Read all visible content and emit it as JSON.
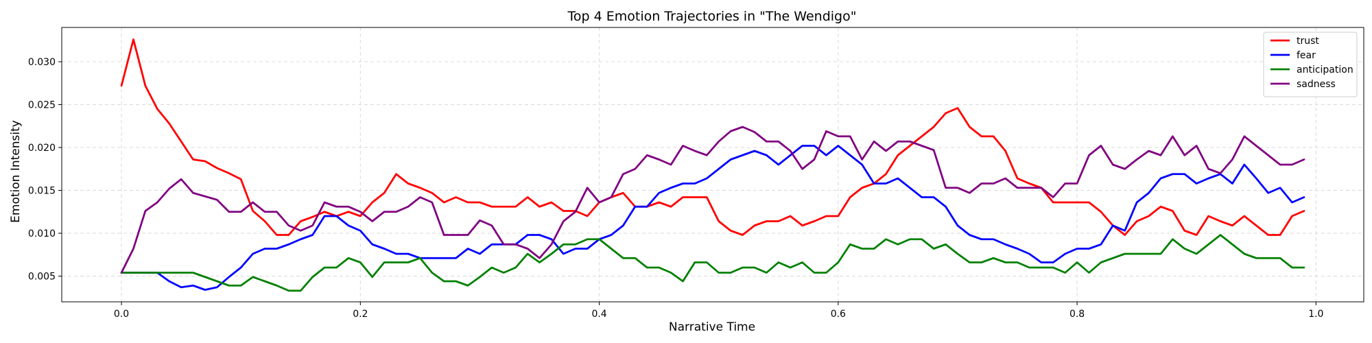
{
  "chart_data": {
    "type": "line",
    "title": "Top 4 Emotion Trajectories in \"The Wendigo\"",
    "xlabel": "Narrative Time",
    "ylabel": "Emotion Intensity",
    "xlim": [
      -0.05,
      1.04
    ],
    "ylim": [
      0.002,
      0.034
    ],
    "x_ticks": [
      0.0,
      0.2,
      0.4,
      0.6,
      0.8,
      1.0
    ],
    "x_tick_labels": [
      "0.0",
      "0.2",
      "0.4",
      "0.6",
      "0.8",
      "1.0"
    ],
    "y_ticks": [
      0.005,
      0.01,
      0.015,
      0.02,
      0.025,
      0.03
    ],
    "y_tick_labels": [
      "0.005",
      "0.010",
      "0.015",
      "0.020",
      "0.025",
      "0.030"
    ],
    "grid": true,
    "legend_position": "top-right",
    "x": [
      0.0,
      0.01,
      0.02,
      0.03,
      0.04,
      0.05,
      0.06,
      0.07,
      0.08,
      0.09,
      0.1,
      0.11,
      0.12,
      0.13,
      0.14,
      0.15,
      0.16,
      0.17,
      0.18,
      0.19,
      0.2,
      0.21,
      0.22,
      0.23,
      0.24,
      0.25,
      0.26,
      0.27,
      0.28,
      0.29,
      0.3,
      0.31,
      0.32,
      0.33,
      0.34,
      0.35,
      0.36,
      0.37,
      0.38,
      0.39,
      0.4,
      0.41,
      0.42,
      0.43,
      0.44,
      0.45,
      0.46,
      0.47,
      0.48,
      0.49,
      0.5,
      0.51,
      0.52,
      0.53,
      0.54,
      0.55,
      0.56,
      0.57,
      0.58,
      0.59,
      0.6,
      0.61,
      0.62,
      0.63,
      0.64,
      0.65,
      0.66,
      0.67,
      0.68,
      0.69,
      0.7,
      0.71,
      0.72,
      0.73,
      0.74,
      0.75,
      0.76,
      0.77,
      0.78,
      0.79,
      0.8,
      0.81,
      0.82,
      0.83,
      0.84,
      0.85,
      0.86,
      0.87,
      0.88,
      0.89,
      0.9,
      0.91,
      0.92,
      0.93,
      0.94,
      0.95,
      0.96,
      0.97,
      0.98,
      0.99
    ],
    "series": [
      {
        "name": "trust",
        "color": "#ff0000",
        "values": [
          0.0272,
          0.0326,
          0.0272,
          0.0245,
          0.0228,
          0.0207,
          0.0186,
          0.0184,
          0.0176,
          0.017,
          0.0163,
          0.0126,
          0.0114,
          0.0098,
          0.0098,
          0.0114,
          0.0119,
          0.0125,
          0.012,
          0.0125,
          0.012,
          0.0136,
          0.0147,
          0.0169,
          0.0158,
          0.0153,
          0.0147,
          0.0136,
          0.0142,
          0.0136,
          0.0136,
          0.0131,
          0.0131,
          0.0131,
          0.0142,
          0.0131,
          0.0136,
          0.0126,
          0.0126,
          0.012,
          0.0136,
          0.0142,
          0.0147,
          0.0131,
          0.0131,
          0.0136,
          0.0131,
          0.0142,
          0.0142,
          0.0142,
          0.0114,
          0.0103,
          0.0098,
          0.0109,
          0.0114,
          0.0114,
          0.012,
          0.0109,
          0.0114,
          0.012,
          0.012,
          0.0142,
          0.0153,
          0.0158,
          0.0169,
          0.0191,
          0.0202,
          0.0213,
          0.0224,
          0.024,
          0.0246,
          0.0224,
          0.0213,
          0.0213,
          0.0196,
          0.0164,
          0.0158,
          0.0153,
          0.0136,
          0.0136,
          0.0136,
          0.0136,
          0.0125,
          0.0109,
          0.0098,
          0.0114,
          0.012,
          0.0131,
          0.0126,
          0.0103,
          0.0098,
          0.012,
          0.0114,
          0.0109,
          0.012,
          0.0109,
          0.0098,
          0.0098,
          0.012,
          0.0126
        ]
      },
      {
        "name": "fear",
        "color": "#0000ff",
        "values": [
          0.0054,
          0.0054,
          0.0054,
          0.0054,
          0.0044,
          0.0037,
          0.0039,
          0.0034,
          0.0037,
          0.0049,
          0.006,
          0.0076,
          0.0082,
          0.0082,
          0.0087,
          0.0093,
          0.0098,
          0.012,
          0.012,
          0.0109,
          0.0103,
          0.0087,
          0.0082,
          0.0076,
          0.0076,
          0.0071,
          0.0071,
          0.0071,
          0.0071,
          0.0082,
          0.0076,
          0.0087,
          0.0087,
          0.0087,
          0.0098,
          0.0098,
          0.0093,
          0.0076,
          0.0082,
          0.0082,
          0.0093,
          0.0098,
          0.0109,
          0.0131,
          0.0131,
          0.0147,
          0.0153,
          0.0158,
          0.0158,
          0.0164,
          0.0175,
          0.0186,
          0.0191,
          0.0196,
          0.0191,
          0.018,
          0.0191,
          0.0202,
          0.0202,
          0.0191,
          0.0202,
          0.0191,
          0.018,
          0.0158,
          0.0158,
          0.0164,
          0.0153,
          0.0142,
          0.0142,
          0.0131,
          0.0109,
          0.0098,
          0.0093,
          0.0093,
          0.0087,
          0.0082,
          0.0076,
          0.0066,
          0.0066,
          0.0076,
          0.0082,
          0.0082,
          0.0087,
          0.0109,
          0.0103,
          0.0136,
          0.0147,
          0.0164,
          0.0169,
          0.0169,
          0.0158,
          0.0164,
          0.0169,
          0.0158,
          0.018,
          0.0164,
          0.0147,
          0.0153,
          0.0136,
          0.0142
        ]
      },
      {
        "name": "anticipation",
        "color": "#008000",
        "values": [
          0.0054,
          0.0054,
          0.0054,
          0.0054,
          0.0054,
          0.0054,
          0.0054,
          0.0049,
          0.0044,
          0.0039,
          0.0039,
          0.0049,
          0.0044,
          0.0039,
          0.0033,
          0.0033,
          0.0049,
          0.006,
          0.006,
          0.0071,
          0.0066,
          0.0049,
          0.0066,
          0.0066,
          0.0066,
          0.0071,
          0.0054,
          0.0044,
          0.0044,
          0.0039,
          0.0049,
          0.006,
          0.0054,
          0.006,
          0.0076,
          0.0066,
          0.0076,
          0.0087,
          0.0087,
          0.0093,
          0.0093,
          0.0082,
          0.0071,
          0.0071,
          0.006,
          0.006,
          0.0054,
          0.0044,
          0.0066,
          0.0066,
          0.0054,
          0.0054,
          0.006,
          0.006,
          0.0054,
          0.0066,
          0.006,
          0.0066,
          0.0054,
          0.0054,
          0.0066,
          0.0087,
          0.0082,
          0.0082,
          0.0093,
          0.0087,
          0.0093,
          0.0093,
          0.0082,
          0.0087,
          0.0076,
          0.0066,
          0.0066,
          0.0071,
          0.0066,
          0.0066,
          0.006,
          0.006,
          0.006,
          0.0054,
          0.0066,
          0.0054,
          0.0066,
          0.0071,
          0.0076,
          0.0076,
          0.0076,
          0.0076,
          0.0093,
          0.0082,
          0.0076,
          0.0087,
          0.0098,
          0.0087,
          0.0076,
          0.0071,
          0.0071,
          0.0071,
          0.006,
          0.006
        ]
      },
      {
        "name": "sadness",
        "color": "#800080",
        "values": [
          0.0054,
          0.0082,
          0.0126,
          0.0136,
          0.0152,
          0.0163,
          0.0147,
          0.0143,
          0.0139,
          0.0125,
          0.0125,
          0.0136,
          0.0125,
          0.0125,
          0.0109,
          0.0103,
          0.0109,
          0.0136,
          0.0131,
          0.0131,
          0.0125,
          0.0114,
          0.0125,
          0.0125,
          0.0131,
          0.0142,
          0.0136,
          0.0098,
          0.0098,
          0.0098,
          0.0115,
          0.0109,
          0.0087,
          0.0087,
          0.0082,
          0.0071,
          0.0087,
          0.0114,
          0.0125,
          0.0153,
          0.0136,
          0.0142,
          0.0169,
          0.0175,
          0.0191,
          0.0186,
          0.018,
          0.0202,
          0.0196,
          0.0191,
          0.0207,
          0.0219,
          0.0224,
          0.0218,
          0.0207,
          0.0207,
          0.0196,
          0.0175,
          0.0186,
          0.0219,
          0.0213,
          0.0213,
          0.0186,
          0.0207,
          0.0196,
          0.0207,
          0.0207,
          0.0202,
          0.0197,
          0.0153,
          0.0153,
          0.0147,
          0.0158,
          0.0158,
          0.0164,
          0.0153,
          0.0153,
          0.0153,
          0.0142,
          0.0158,
          0.0158,
          0.0191,
          0.0202,
          0.018,
          0.0175,
          0.0186,
          0.0196,
          0.0191,
          0.0213,
          0.0191,
          0.0202,
          0.0175,
          0.017,
          0.0186,
          0.0213,
          0.0202,
          0.0191,
          0.018,
          0.018,
          0.0186
        ]
      }
    ]
  }
}
